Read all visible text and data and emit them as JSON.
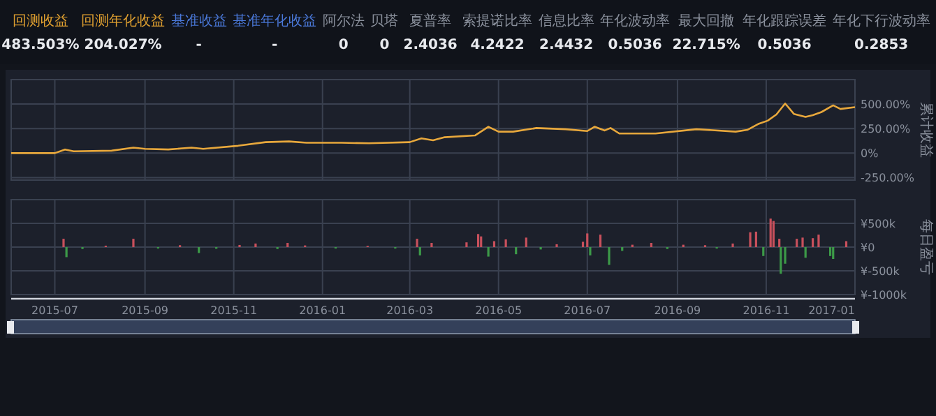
{
  "chart_data": [
    {
      "type": "other",
      "categories": [
        "回测收益",
        "回测年化收益",
        "基准收益",
        "基准年化收益",
        "阿尔法",
        "贝塔",
        "夏普率",
        "索提诺比率",
        "信息比率",
        "年化波动率",
        "最大回撤",
        "年化跟踪误差",
        "年化下行波动率"
      ],
      "value_labels": [
        "483.503%",
        "204.027%",
        "-",
        "-",
        "0",
        "0",
        "2.4036",
        "4.2422",
        "2.4432",
        "0.5036",
        "22.715%",
        "0.5036",
        "0.2853"
      ],
      "colors": [
        "#e0a030",
        "#e0a030",
        "#4a78d8",
        "#4a78d8",
        "#8a909c",
        "#8a909c",
        "#8a909c",
        "#8a909c",
        "#8a909c",
        "#8a909c",
        "#8a909c",
        "#8a909c",
        "#8a909c"
      ]
    },
    {
      "type": "line",
      "ylabel": "累计收益",
      "xlim": [
        "2015-06-01",
        "2017-01-01"
      ],
      "xticks": [
        "2015-07",
        "2015-09",
        "2015-11",
        "2016-01",
        "2016-03",
        "2016-05",
        "2016-07",
        "2016-09",
        "2016-11",
        "2017-01"
      ],
      "ylim": [
        -275,
        750
      ],
      "yticks": [
        {
          "value": -250,
          "label": "-250.00%"
        },
        {
          "value": 0,
          "label": "0%"
        },
        {
          "value": 250,
          "label": "250.00%"
        },
        {
          "value": 500,
          "label": "500.00%"
        }
      ],
      "grid": true,
      "tick_labels": "y",
      "series": [
        {
          "color": "#e8a83c",
          "x": [
            "2015-06-01",
            "2015-07-01",
            "2015-07-08",
            "2015-07-14",
            "2015-08-09",
            "2015-08-24",
            "2015-09-01",
            "2015-09-17",
            "2015-10-03",
            "2015-10-11",
            "2015-11-04",
            "2015-11-23",
            "2015-12-09",
            "2015-12-21",
            "2016-01-14",
            "2016-02-02",
            "2016-03-01",
            "2016-03-09",
            "2016-03-17",
            "2016-03-25",
            "2016-04-15",
            "2016-04-24",
            "2016-05-01",
            "2016-05-11",
            "2016-05-27",
            "2016-06-16",
            "2016-07-01",
            "2016-07-06",
            "2016-07-13",
            "2016-07-17",
            "2016-07-23",
            "2016-08-17",
            "2016-09-14",
            "2016-10-11",
            "2016-10-19",
            "2016-10-27",
            "2016-11-02",
            "2016-11-08",
            "2016-11-14",
            "2016-11-20",
            "2016-11-28",
            "2016-12-03",
            "2016-12-09",
            "2016-12-17",
            "2016-12-22",
            "2017-01-01"
          ],
          "values": [
            0,
            0,
            37,
            19,
            25,
            56,
            44,
            37,
            56,
            44,
            75,
            112,
            119,
            106,
            106,
            100,
            112,
            150,
            131,
            162,
            181,
            269,
            219,
            219,
            256,
            244,
            225,
            269,
            231,
            256,
            200,
            200,
            244,
            219,
            237,
            300,
            331,
            394,
            506,
            400,
            369,
            387,
            419,
            487,
            450,
            469
          ]
        }
      ]
    },
    {
      "type": "bar",
      "ylabel": "每日盈亏",
      "xlim": [
        "2015-06-01",
        "2017-01-01"
      ],
      "xticks": [
        "2015-07",
        "2015-09",
        "2015-11",
        "2016-01",
        "2016-03",
        "2016-05",
        "2016-07",
        "2016-09",
        "2016-11",
        "2017-01"
      ],
      "ylim": [
        -1000,
        1000
      ],
      "yticks": [
        {
          "value": -1000,
          "label": "¥-1000k"
        },
        {
          "value": -500,
          "label": "¥-500k"
        },
        {
          "value": 0,
          "label": "¥0"
        },
        {
          "value": 500,
          "label": "¥500k"
        }
      ],
      "grid": true,
      "series": [
        {
          "color": "#c8505c",
          "x": [
            "2015-07-07",
            "2015-08-05",
            "2015-08-24",
            "2015-09-25",
            "2015-11-05",
            "2015-11-16",
            "2015-12-08",
            "2015-12-20",
            "2016-02-01",
            "2016-03-06",
            "2016-03-16",
            "2016-04-09",
            "2016-04-17",
            "2016-04-19",
            "2016-04-28",
            "2016-05-06",
            "2016-05-20",
            "2016-06-10",
            "2016-06-28",
            "2016-07-01",
            "2016-07-10",
            "2016-08-01",
            "2016-08-14",
            "2016-09-05",
            "2016-09-20",
            "2016-10-09",
            "2016-10-21",
            "2016-10-25",
            "2016-11-04",
            "2016-11-06",
            "2016-11-10",
            "2016-11-22",
            "2016-11-26",
            "2016-12-03",
            "2016-12-07",
            "2016-12-26"
          ],
          "values": [
            175,
            30,
            175,
            40,
            45,
            75,
            88,
            35,
            25,
            175,
            88,
            100,
            275,
            225,
            125,
            162,
            200,
            60,
            112,
            288,
            262,
            50,
            88,
            50,
            40,
            75,
            312,
            325,
            600,
            550,
            175,
            175,
            200,
            188,
            262,
            125
          ]
        },
        {
          "color": "#3c9a48",
          "x": [
            "2015-07-09",
            "2015-07-20",
            "2015-09-10",
            "2015-10-08",
            "2015-10-20",
            "2015-12-01",
            "2016-01-10",
            "2016-02-20",
            "2016-03-08",
            "2016-04-24",
            "2016-05-13",
            "2016-05-30",
            "2016-07-03",
            "2016-07-16",
            "2016-07-25",
            "2016-08-25",
            "2016-09-28",
            "2016-10-30",
            "2016-11-11",
            "2016-11-14",
            "2016-11-28",
            "2016-12-15",
            "2016-12-17"
          ],
          "values": [
            -212,
            -40,
            -30,
            -125,
            -35,
            -40,
            -30,
            -30,
            -175,
            -200,
            -150,
            -50,
            -175,
            -375,
            -80,
            -40,
            -30,
            -188,
            -562,
            -350,
            -225,
            -188,
            -250
          ]
        }
      ]
    }
  ]
}
